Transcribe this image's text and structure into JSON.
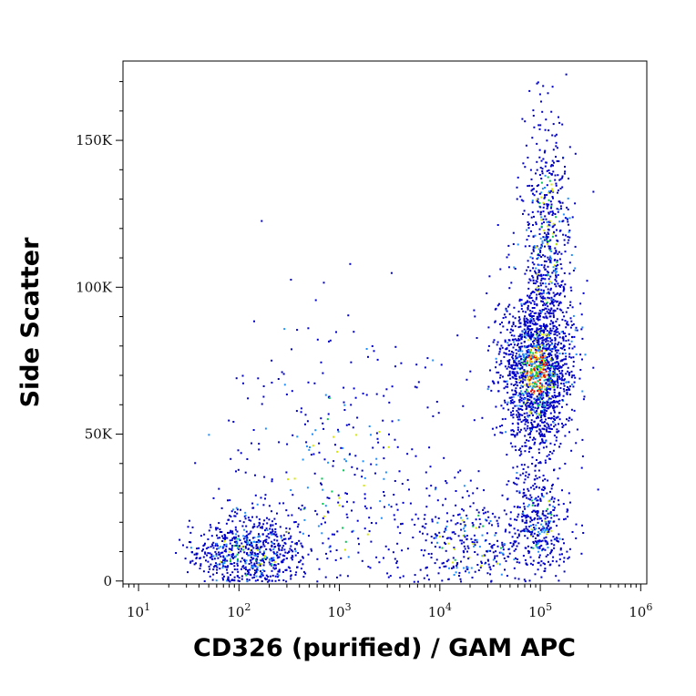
{
  "chart_data": {
    "type": "scatter",
    "plot_style": "flow-cytometry density dot plot",
    "xlabel": "CD326 (purified) / GAM APC",
    "ylabel": "Side Scatter",
    "x_scale": "log",
    "xlim": [
      7,
      1150000
    ],
    "ylim": [
      -1000,
      177000
    ],
    "x_ticks": [
      {
        "value": 10,
        "base": "10",
        "exp": "1"
      },
      {
        "value": 100,
        "base": "10",
        "exp": "2"
      },
      {
        "value": 1000,
        "base": "10",
        "exp": "3"
      },
      {
        "value": 10000,
        "base": "10",
        "exp": "4"
      },
      {
        "value": 100000,
        "base": "10",
        "exp": "5"
      },
      {
        "value": 1000000,
        "base": "10",
        "exp": "6"
      }
    ],
    "y_ticks": [
      {
        "value": 0,
        "label": "0"
      },
      {
        "value": 50000,
        "label": "50K"
      },
      {
        "value": 100000,
        "label": "100K"
      },
      {
        "value": 150000,
        "label": "150K"
      }
    ],
    "grid": false,
    "legend": "none",
    "density_colors": [
      "#0000c8",
      "#1e90ff",
      "#00c853",
      "#d4e800",
      "#ffa000",
      "#e00000"
    ],
    "populations": [
      {
        "name_shown": false,
        "x_center": 90000,
        "x_log_sd": 0.18,
        "y_center": 72000,
        "y_sd": 14000,
        "count": 1700
      },
      {
        "name_shown": false,
        "x_center": 115000,
        "x_log_sd": 0.12,
        "y_center": 115000,
        "y_sd": 22000,
        "count": 550
      },
      {
        "name_shown": false,
        "x_center": 100000,
        "x_log_sd": 0.15,
        "y_center": 20000,
        "y_sd": 9000,
        "count": 350
      },
      {
        "name_shown": false,
        "x_center": 20000,
        "x_log_sd": 0.35,
        "y_center": 12000,
        "y_sd": 10000,
        "count": 420
      },
      {
        "name_shown": false,
        "x_center": 120,
        "x_log_sd": 0.28,
        "y_center": 9000,
        "y_sd": 7000,
        "count": 800
      },
      {
        "name_shown": false,
        "x_center": 900,
        "x_log_sd": 0.55,
        "y_center": 35000,
        "y_sd": 28000,
        "count": 380
      }
    ]
  }
}
